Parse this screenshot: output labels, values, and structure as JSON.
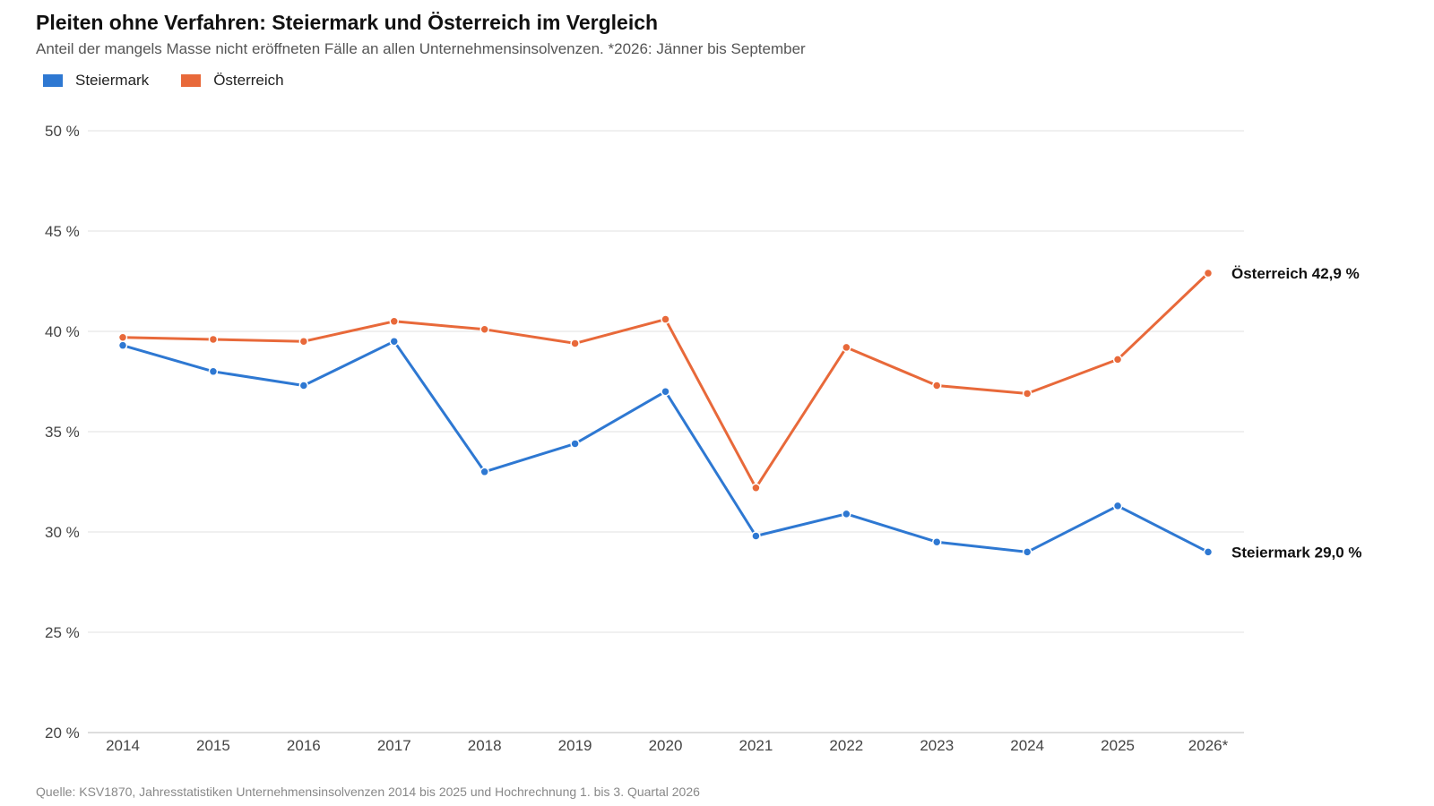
{
  "chart_data": {
    "type": "line",
    "title": "Pleiten ohne Verfahren: Steiermark und Österreich im Vergleich",
    "subtitle": "Anteil der mangels Masse nicht eröffneten Fälle an allen Unternehmensinsolvenzen. *2026: Jänner bis September",
    "source": "Quelle: KSV1870, Jahresstatistiken Unternehmensinsolvenzen 2014 bis 2025 und Hochrechnung 1. bis 3. Quartal 2026",
    "x": [
      "2014",
      "2015",
      "2016",
      "2017",
      "2018",
      "2019",
      "2020",
      "2021",
      "2022",
      "2023",
      "2024",
      "2025",
      "2026*"
    ],
    "ylim": [
      20,
      50
    ],
    "yticks": [
      20,
      25,
      30,
      35,
      40,
      45,
      50
    ],
    "ytick_labels": [
      "20 %",
      "25 %",
      "30 %",
      "35 %",
      "40 %",
      "45 %",
      "50 %"
    ],
    "grid": true,
    "legend_position": "top-left",
    "series": [
      {
        "name": "Steiermark",
        "color": "#2e78d2",
        "values": [
          39.3,
          38.0,
          37.3,
          39.5,
          33.0,
          34.4,
          37.0,
          29.8,
          30.9,
          29.5,
          29.0,
          31.3,
          29.0
        ],
        "end_label": "Steiermark 29,0 %"
      },
      {
        "name": "Österreich",
        "color": "#e8693a",
        "values": [
          39.7,
          39.6,
          39.5,
          40.5,
          40.1,
          39.4,
          40.6,
          32.2,
          39.2,
          37.3,
          36.9,
          38.6,
          42.9
        ],
        "end_label": "Österreich 42,9 %"
      }
    ]
  }
}
